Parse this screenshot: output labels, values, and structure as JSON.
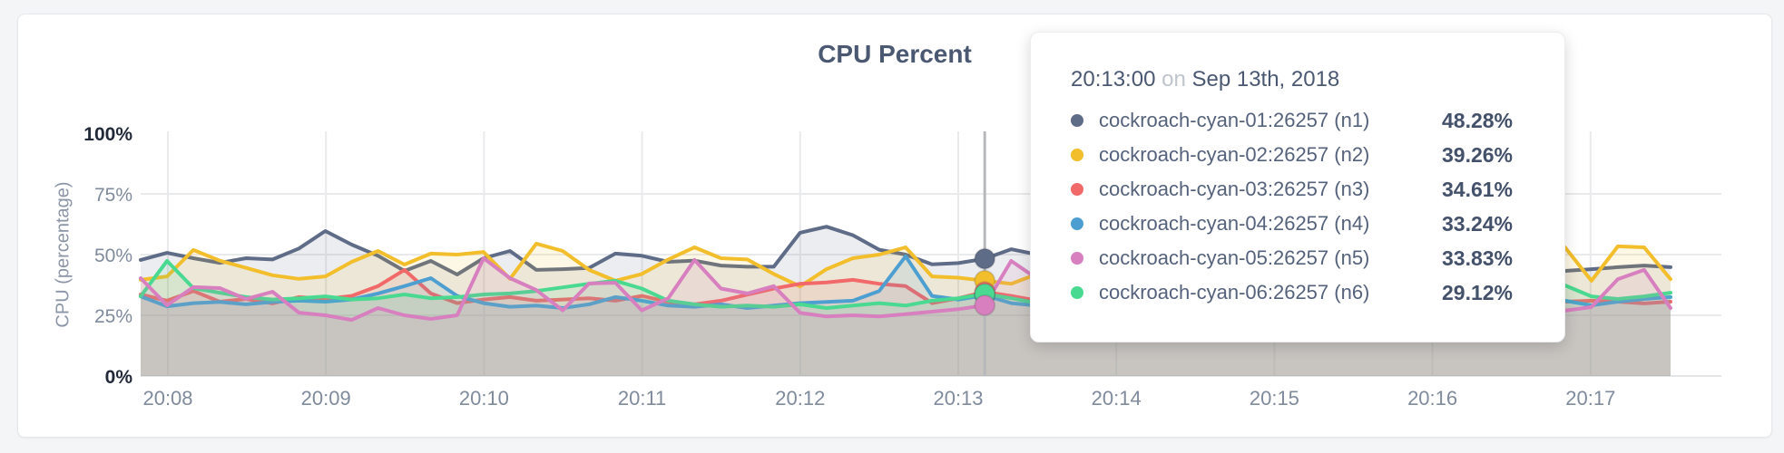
{
  "colors": {
    "page_bg": "#f4f5f6",
    "card_bg": "#ffffff",
    "grid": "#e9eaec",
    "zero_line": "#e4e5e7",
    "title_text": "#4a5872",
    "axis_text": "#7f8b9d",
    "axis_text_strong": "#222a3a",
    "guideline": "#b6b8bb"
  },
  "tooltip": {
    "time": "20:13:00",
    "conjunction": "on",
    "date": "Sep 13th, 2018",
    "rows": [
      {
        "label": "cockroach-cyan-01:26257 (n1)",
        "value": "48.28%",
        "color": "#5F6C87"
      },
      {
        "label": "cockroach-cyan-02:26257 (n2)",
        "value": "39.26%",
        "color": "#F2BE2C"
      },
      {
        "label": "cockroach-cyan-03:26257 (n3)",
        "value": "34.61%",
        "color": "#F16969"
      },
      {
        "label": "cockroach-cyan-04:26257 (n4)",
        "value": "33.24%",
        "color": "#4E9FD1"
      },
      {
        "label": "cockroach-cyan-05:26257 (n5)",
        "value": "33.83%",
        "color": "#D77FBF"
      },
      {
        "label": "cockroach-cyan-06:26257 (n6)",
        "value": "29.12%",
        "color": "#49D990"
      }
    ]
  },
  "chart_data": {
    "type": "area",
    "title": "CPU Percent",
    "ylabel": "CPU (percentage)",
    "ylim": [
      0,
      100
    ],
    "grid": true,
    "legend_position": "tooltip",
    "x_start": "20:07:50",
    "x_interval_seconds": 10,
    "x_tick_labels": [
      "20:08",
      "20:09",
      "20:10",
      "20:11",
      "20:12",
      "20:13",
      "20:14",
      "20:15",
      "20:16",
      "20:17"
    ],
    "y_ticks": [
      {
        "label": "100%",
        "value": 100,
        "strong": true
      },
      {
        "label": "75%",
        "value": 75,
        "strong": false
      },
      {
        "label": "50%",
        "value": 50,
        "strong": false
      },
      {
        "label": "25%",
        "value": 25,
        "strong": false
      },
      {
        "label": "0%",
        "value": 0,
        "strong": true
      }
    ],
    "highlight": {
      "index": 32,
      "time": "20:13:00"
    },
    "series": [
      {
        "name": "cockroach-cyan-01:26257 (n1)",
        "color": "#5F6C87",
        "values": [
          47.8,
          50.7,
          48.5,
          46.6,
          48.5,
          48.0,
          52.5,
          59.7,
          54.1,
          49.5,
          43.3,
          47.4,
          41.8,
          48.5,
          51.5,
          43.7,
          44.0,
          44.5,
          50.4,
          49.5,
          47.0,
          47.5,
          45.5,
          45.0,
          45.0,
          59.0,
          61.5,
          58.0,
          52.0,
          50.0,
          46.0,
          46.5,
          48.28,
          52.2,
          50.0,
          46.0,
          44.0,
          47.0,
          45.0,
          48.0,
          50.0,
          47.0,
          45.0,
          46.0,
          48.0,
          44.0,
          45.0,
          47.0,
          46.0,
          44.0,
          43.0,
          45.0,
          44.0,
          43.0,
          43.3,
          44.0,
          44.8,
          45.5,
          44.8
        ]
      },
      {
        "name": "cockroach-cyan-02:26257 (n2)",
        "color": "#F2BE2C",
        "values": [
          39.6,
          41.0,
          51.9,
          47.5,
          44.5,
          41.5,
          40.0,
          41.0,
          47.0,
          51.5,
          45.9,
          50.4,
          50.0,
          51.1,
          40.0,
          54.5,
          51.5,
          43.7,
          39.2,
          42.0,
          48.0,
          53.0,
          48.5,
          48.0,
          42.0,
          36.9,
          44.0,
          48.5,
          50.0,
          53.0,
          41.0,
          40.5,
          39.26,
          38.0,
          42.0,
          47.0,
          51.0,
          46.0,
          40.0,
          38.0,
          43.0,
          48.0,
          52.0,
          47.0,
          41.0,
          39.0,
          44.0,
          49.0,
          53.0,
          50.0,
          46.0,
          52.0,
          48.0,
          44.0,
          53.0,
          39.2,
          53.4,
          53.0,
          39.9
        ]
      },
      {
        "name": "cockroach-cyan-03:26257 (n3)",
        "color": "#F16969",
        "values": [
          33.6,
          31.0,
          35.0,
          30.6,
          31.7,
          29.9,
          32.5,
          31.7,
          33.0,
          37.0,
          43.7,
          34.0,
          30.0,
          31.5,
          32.5,
          31.0,
          31.5,
          32.0,
          31.0,
          33.0,
          30.5,
          29.5,
          31.0,
          33.5,
          36.0,
          38.0,
          38.5,
          39.6,
          38.0,
          37.0,
          30.0,
          32.0,
          34.61,
          33.0,
          31.0,
          30.0,
          32.0,
          35.0,
          33.0,
          30.0,
          29.0,
          31.0,
          34.0,
          36.0,
          33.0,
          31.0,
          30.0,
          32.0,
          34.0,
          31.0,
          30.0,
          32.0,
          33.0,
          31.0,
          30.6,
          31.0,
          30.6,
          29.9,
          30.6
        ]
      },
      {
        "name": "cockroach-cyan-04:26257 (n4)",
        "color": "#4E9FD1",
        "values": [
          32.8,
          28.7,
          30.0,
          30.5,
          29.5,
          30.5,
          31.0,
          30.6,
          31.5,
          34.0,
          37.0,
          40.3,
          33.0,
          30.0,
          28.5,
          29.0,
          28.0,
          29.5,
          32.5,
          31.0,
          29.0,
          28.5,
          29.5,
          28.0,
          29.0,
          30.0,
          30.5,
          31.0,
          35.0,
          49.3,
          33.0,
          31.5,
          33.24,
          30.0,
          29.0,
          28.0,
          30.0,
          32.0,
          31.0,
          29.0,
          28.0,
          30.0,
          33.0,
          35.0,
          31.0,
          29.0,
          28.0,
          30.0,
          31.0,
          29.0,
          30.0,
          31.0,
          32.0,
          30.0,
          31.0,
          29.1,
          30.6,
          31.7,
          32.5
        ]
      },
      {
        "name": "cockroach-cyan-05:26257 (n5)",
        "color": "#49D990",
        "values": [
          32.8,
          47.4,
          36.2,
          34.3,
          32.5,
          31.5,
          32.0,
          32.8,
          31.5,
          32.0,
          33.6,
          32.0,
          32.5,
          33.6,
          34.0,
          35.0,
          36.5,
          38.0,
          39.2,
          36.0,
          31.0,
          29.5,
          28.5,
          29.0,
          28.5,
          29.5,
          28.0,
          29.0,
          30.0,
          29.0,
          31.0,
          32.0,
          33.83,
          32.0,
          30.0,
          29.0,
          31.0,
          33.0,
          35.0,
          32.0,
          30.0,
          29.0,
          31.0,
          34.0,
          36.0,
          33.0,
          31.0,
          29.0,
          30.0,
          32.0,
          34.0,
          36.0,
          38.0,
          37.0,
          37.3,
          32.8,
          31.7,
          32.8,
          34.3
        ]
      },
      {
        "name": "cockroach-cyan-06:26257 (n6)",
        "color": "#D77FBF",
        "values": [
          40.3,
          29.1,
          36.6,
          36.2,
          31.7,
          34.7,
          26.1,
          25.0,
          23.1,
          28.0,
          25.0,
          23.5,
          25.0,
          48.5,
          40.3,
          35.4,
          27.0,
          38.1,
          38.4,
          27.0,
          32.0,
          47.8,
          36.0,
          34.0,
          37.0,
          26.0,
          24.5,
          25.0,
          24.5,
          25.5,
          26.5,
          27.5,
          29.12,
          47.4,
          40.0,
          32.0,
          27.0,
          25.0,
          30.0,
          38.0,
          44.0,
          36.0,
          28.0,
          25.0,
          27.0,
          33.0,
          41.0,
          35.0,
          28.0,
          25.0,
          26.0,
          30.0,
          27.0,
          26.0,
          26.9,
          28.4,
          39.9,
          43.7,
          28.0
        ]
      }
    ]
  }
}
